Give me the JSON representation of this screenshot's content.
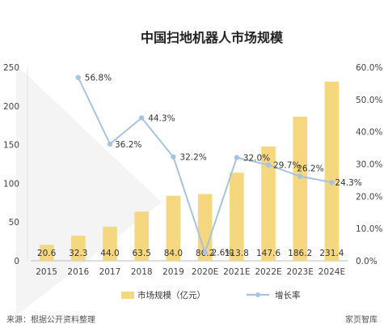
{
  "chart_data": {
    "type": "bar+line",
    "title": "中国扫地机器人市场规模",
    "categories": [
      "2015",
      "2016",
      "2017",
      "2018",
      "2019",
      "2020E",
      "2021E",
      "2022E",
      "2023E",
      "2024E"
    ],
    "bar_series": {
      "name": "市场规模（亿元）",
      "values": [
        20.6,
        32.3,
        44.0,
        63.5,
        84.0,
        86.2,
        113.8,
        147.6,
        186.2,
        231.4
      ],
      "labels": [
        "20.6",
        "32.3",
        "44.0",
        "63.5",
        "84.0",
        "86.2",
        "113.8",
        "147.6",
        "186.2",
        "231.4"
      ],
      "color": "#f5d77f"
    },
    "line_series": {
      "name": "增长率",
      "values": [
        null,
        56.8,
        36.2,
        44.3,
        32.2,
        2.6,
        32.0,
        29.7,
        26.2,
        24.3
      ],
      "labels": [
        "",
        "56.8%",
        "36.2%",
        "44.3%",
        "32.2%",
        "2.6%",
        "32.0%",
        "29.7%",
        "26.2%",
        "24.3%"
      ],
      "color": "#a7c3e0"
    },
    "y_left": {
      "min": 0,
      "max": 250,
      "ticks": [
        "0",
        "50",
        "100",
        "150",
        "200",
        "250"
      ]
    },
    "y_right": {
      "min": 0,
      "max": 60,
      "ticks": [
        "0.0%",
        "10.0%",
        "20.0%",
        "30.0%",
        "40.0%",
        "50.0%",
        "60.0%"
      ]
    },
    "grid": false,
    "legend_position": "bottom"
  },
  "footer": {
    "source": "来源：根据公开资料整理",
    "brand": "家页智库"
  }
}
